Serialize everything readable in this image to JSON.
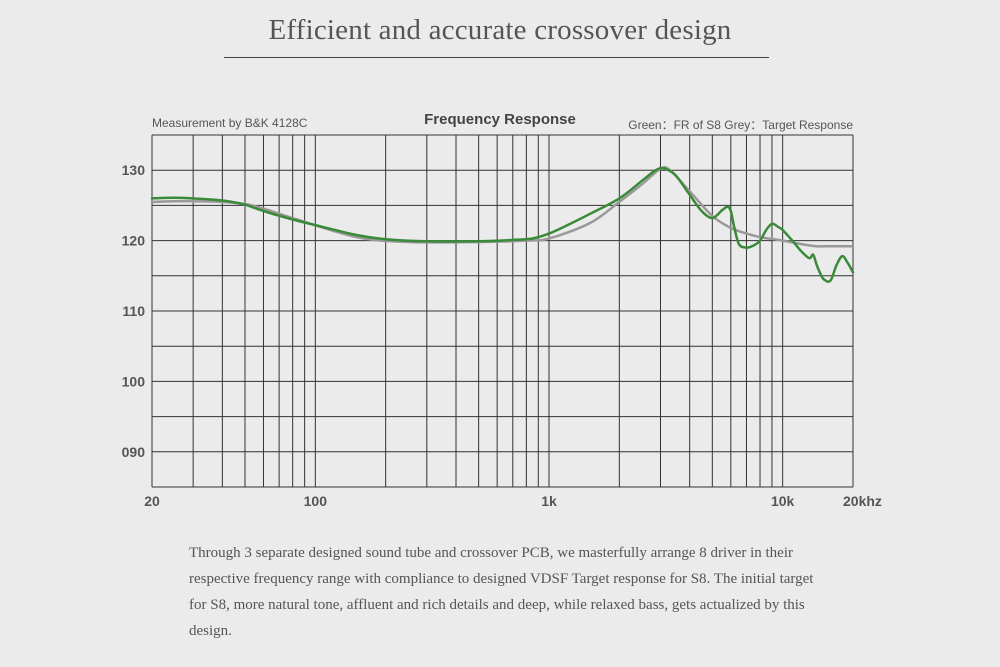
{
  "header": {
    "title": "Efficient and accurate crossover design"
  },
  "chart_meta": {
    "measurement": "Measurement by B&K 4128C",
    "legend_text": "Green：FR of S8   Grey：Target Response"
  },
  "colors": {
    "fr_line": "#3a8a3a",
    "target_line": "#999999",
    "grid": "#333333"
  },
  "description": "Through 3 separate designed sound tube and crossover PCB, we masterfully arrange 8 driver in their respective frequency range with compliance to designed VDSF Target response for S8. The initial target for S8, more natural tone, affluent and rich details and deep, while relaxed bass, gets actualized by this design.",
  "chart_data": {
    "type": "line",
    "title": "Frequency Response",
    "xscale": "log",
    "xlim": [
      20,
      20000
    ],
    "ylim": [
      85,
      135
    ],
    "x_ticks": [
      {
        "value": 20,
        "label": "20"
      },
      {
        "value": 100,
        "label": "100"
      },
      {
        "value": 1000,
        "label": "1k"
      },
      {
        "value": 10000,
        "label": "10k"
      },
      {
        "value": 20000,
        "label": "20khz"
      }
    ],
    "y_ticks": [
      {
        "value": 90,
        "label": "090"
      },
      {
        "value": 100,
        "label": "100"
      },
      {
        "value": 110,
        "label": "110"
      },
      {
        "value": 120,
        "label": "120"
      },
      {
        "value": 130,
        "label": "130"
      }
    ],
    "grid": true,
    "legend": "top-right",
    "series": [
      {
        "name": "Target Response",
        "x": [
          20,
          30,
          50,
          80,
          150,
          250,
          500,
          800,
          1000,
          1500,
          2000,
          2500,
          3000,
          3300,
          4000,
          5000,
          6000,
          7000,
          8000,
          10000,
          12000,
          14000,
          16000,
          20000
        ],
        "y": [
          125.5,
          125.6,
          125.2,
          123.2,
          120.5,
          119.8,
          119.8,
          120.0,
          120.3,
          122.5,
          125.5,
          128.0,
          130.2,
          130.0,
          127.0,
          123.5,
          121.8,
          121.0,
          120.5,
          120.0,
          119.5,
          119.2,
          119.2,
          119.2
        ]
      },
      {
        "name": "FR of S8",
        "x": [
          20,
          25,
          30,
          40,
          50,
          60,
          80,
          100,
          150,
          200,
          300,
          500,
          700,
          850,
          1000,
          1200,
          1500,
          2000,
          2500,
          2800,
          3000,
          3200,
          3500,
          4000,
          4500,
          5000,
          5500,
          5800,
          6000,
          6200,
          6500,
          7000,
          7500,
          8000,
          8500,
          9000,
          9500,
          10000,
          11000,
          12000,
          13000,
          13500,
          14000,
          14500,
          15000,
          16000,
          17000,
          18000,
          19000,
          20000
        ],
        "y": [
          126.0,
          126.1,
          126.0,
          125.7,
          125.1,
          124.2,
          123.0,
          122.2,
          120.8,
          120.2,
          119.9,
          119.9,
          120.1,
          120.3,
          121.0,
          122.2,
          123.8,
          126.0,
          128.5,
          129.8,
          130.3,
          130.1,
          129.2,
          126.5,
          124.2,
          123.2,
          124.3,
          124.8,
          124.2,
          122.0,
          119.5,
          119.0,
          119.3,
          120.0,
          121.5,
          122.4,
          122.0,
          121.5,
          120.0,
          118.5,
          117.5,
          118.0,
          116.5,
          115.3,
          114.5,
          114.3,
          116.5,
          117.8,
          116.8,
          115.5
        ]
      }
    ]
  }
}
